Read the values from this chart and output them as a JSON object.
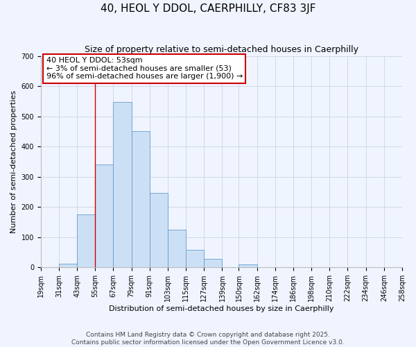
{
  "title": "40, HEOL Y DDOL, CAERPHILLY, CF83 3JF",
  "subtitle": "Size of property relative to semi-detached houses in Caerphilly",
  "xlabel": "Distribution of semi-detached houses by size in Caerphilly",
  "ylabel": "Number of semi-detached properties",
  "bar_color": "#cce0f5",
  "bar_edge_color": "#6699cc",
  "grid_color": "#d0d8e8",
  "bg_color": "#f0f4ff",
  "bin_edges": [
    19,
    31,
    43,
    55,
    67,
    79,
    91,
    103,
    115,
    127,
    139,
    150,
    162,
    174,
    186,
    198,
    210,
    222,
    234,
    246,
    258
  ],
  "bin_labels": [
    "19sqm",
    "31sqm",
    "43sqm",
    "55sqm",
    "67sqm",
    "79sqm",
    "91sqm",
    "103sqm",
    "115sqm",
    "127sqm",
    "139sqm",
    "150sqm",
    "162sqm",
    "174sqm",
    "186sqm",
    "198sqm",
    "210sqm",
    "222sqm",
    "234sqm",
    "246sqm",
    "258sqm"
  ],
  "counts": [
    0,
    12,
    175,
    340,
    548,
    450,
    247,
    125,
    57,
    28,
    0,
    10,
    0,
    0,
    0,
    0,
    0,
    0,
    0,
    0
  ],
  "vline_x": 55,
  "annotation_title": "40 HEOL Y DDOL: 53sqm",
  "annotation_line1": "← 3% of semi-detached houses are smaller (53)",
  "annotation_line2": "96% of semi-detached houses are larger (1,900) →",
  "annotation_box_color": "#ffffff",
  "annotation_box_edge": "#cc0000",
  "vline_color": "#cc0000",
  "ylim": [
    0,
    700
  ],
  "yticks": [
    0,
    100,
    200,
    300,
    400,
    500,
    600,
    700
  ],
  "footer1": "Contains HM Land Registry data © Crown copyright and database right 2025.",
  "footer2": "Contains public sector information licensed under the Open Government Licence v3.0.",
  "title_fontsize": 11,
  "subtitle_fontsize": 9,
  "axis_label_fontsize": 8,
  "tick_fontsize": 7,
  "annotation_fontsize": 8,
  "footer_fontsize": 6.5
}
